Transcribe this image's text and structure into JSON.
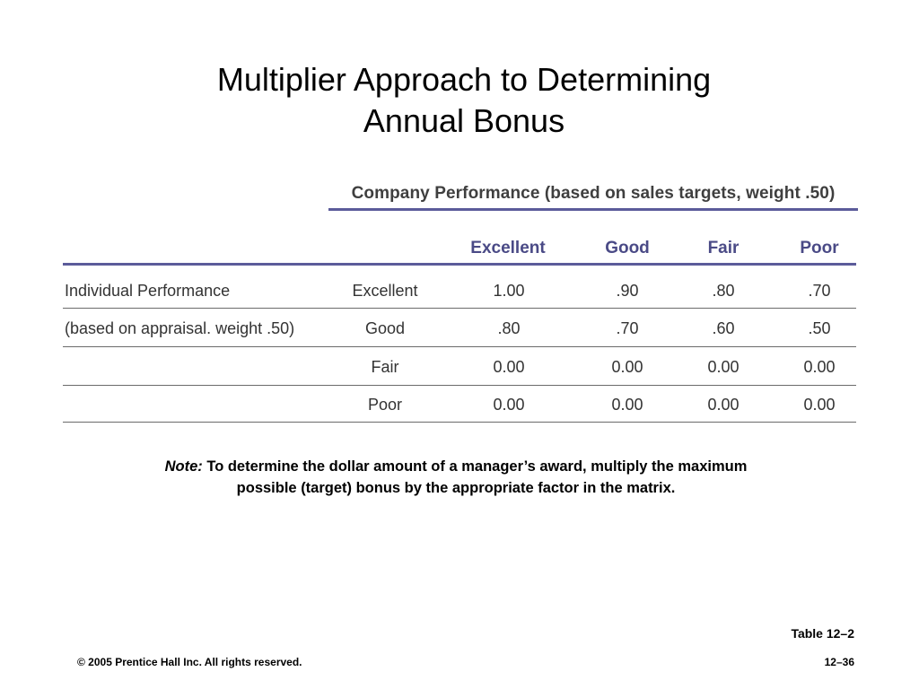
{
  "slide": {
    "title_line1": "Multiplier Approach to Determining",
    "title_line2": "Annual Bonus"
  },
  "table": {
    "company_header": "Company Performance (based on sales targets, weight .50)",
    "columns": [
      "Excellent",
      "Good",
      "Fair",
      "Poor"
    ],
    "individual_label_line1": "Individual Performance",
    "individual_label_line2": "(based on appraisal. weight .50)",
    "rows": [
      {
        "label": "Excellent",
        "values": [
          "1.00",
          ".90",
          ".80",
          ".70"
        ]
      },
      {
        "label": "Good",
        "values": [
          ".80",
          ".70",
          ".60",
          ".50"
        ]
      },
      {
        "label": "Fair",
        "values": [
          "0.00",
          "0.00",
          "0.00",
          "0.00"
        ]
      },
      {
        "label": "Poor",
        "values": [
          "0.00",
          "0.00",
          "0.00",
          "0.00"
        ]
      }
    ]
  },
  "note": {
    "label": "Note:",
    "text": " To determine the dollar amount of a manager’s award, multiply the maximum possible (target) bonus by the appropriate factor in the matrix."
  },
  "footer": {
    "table_ref": "Table 12–2",
    "copyright": "© 2005 Prentice Hall Inc. All rights reserved.",
    "page": "12–36"
  }
}
